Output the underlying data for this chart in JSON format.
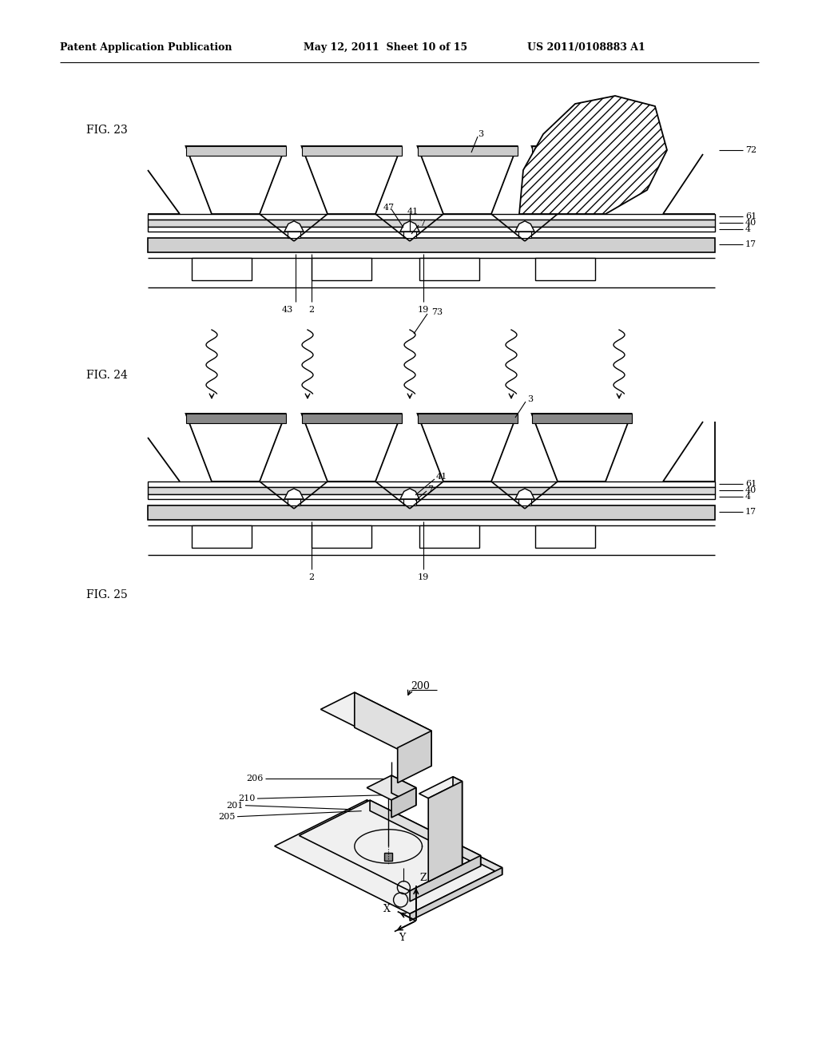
{
  "header_left": "Patent Application Publication",
  "header_mid": "May 12, 2011  Sheet 10 of 15",
  "header_right": "US 2011/0108883 A1",
  "fig23_label": "FIG. 23",
  "fig24_label": "FIG. 24",
  "fig25_label": "FIG. 25",
  "background": "#ffffff",
  "line_color": "#000000"
}
